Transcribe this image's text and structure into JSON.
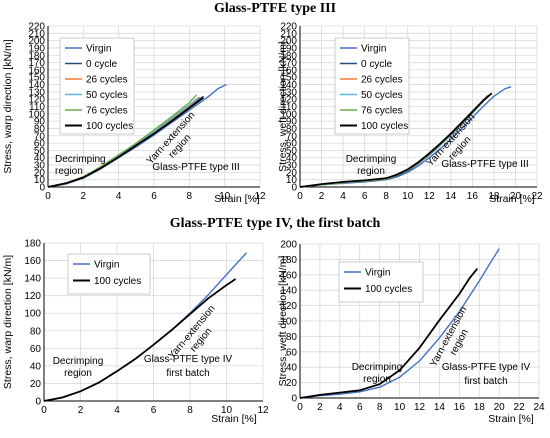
{
  "section_titles": {
    "top": "Glass-PTFE type III",
    "bottom": "Glass-PTFE type IV, the first batch"
  },
  "colors": {
    "Virgin": "#4472C4",
    "0 cycle": "#1F4E79",
    "26 cycles": "#ED7D31",
    "50 cycles": "#5BB5E0",
    "76 cycles": "#70AD47",
    "100 cycles": "#000000"
  },
  "chart_data": [
    {
      "type": "line",
      "xlabel": "Strain [%]",
      "ylabel": "Stress, warp direction [kN/m]",
      "xlim": [
        0,
        12
      ],
      "ylim": [
        0,
        220
      ],
      "xticks": [
        0,
        2,
        4,
        6,
        8,
        10,
        12
      ],
      "yticks": [
        0,
        10,
        20,
        30,
        40,
        50,
        60,
        70,
        80,
        90,
        100,
        110,
        120,
        130,
        140,
        150,
        160,
        170,
        180,
        190,
        200,
        210,
        220
      ],
      "grid": true,
      "legend_position": "top-left",
      "annotations": [
        "Decrimping region",
        "Yarn-extension region",
        "Glass-PTFE type III"
      ],
      "series": [
        {
          "name": "Virgin",
          "x": [
            0,
            1,
            2,
            3,
            4,
            5,
            6,
            7,
            8,
            9,
            9.6,
            10.1
          ],
          "y": [
            0,
            4,
            12,
            25,
            40,
            55,
            71,
            88,
            105,
            122,
            134,
            140
          ]
        },
        {
          "name": "0 cycle",
          "x": [
            0,
            1,
            2,
            3,
            4,
            5,
            6,
            7,
            8,
            8.5,
            8.8
          ],
          "y": [
            0,
            5,
            13,
            26,
            41,
            57,
            74,
            92,
            110,
            119,
            124
          ]
        },
        {
          "name": "26 cycles",
          "x": [
            0,
            1,
            2,
            3,
            4,
            5,
            6,
            7,
            8,
            8.6
          ],
          "y": [
            0,
            5,
            13,
            26,
            42,
            58,
            75,
            93,
            111,
            123
          ]
        },
        {
          "name": "50 cycles",
          "x": [
            0,
            1,
            2,
            3,
            4,
            5,
            6,
            7,
            8,
            8.5
          ],
          "y": [
            0,
            5,
            14,
            27,
            43,
            59,
            76,
            94,
            112,
            122
          ]
        },
        {
          "name": "76 cycles",
          "x": [
            0,
            1,
            2,
            3,
            4,
            5,
            6,
            7,
            8,
            8.4
          ],
          "y": [
            0,
            5,
            14,
            28,
            44,
            60,
            78,
            96,
            115,
            126
          ]
        },
        {
          "name": "100 cycles",
          "x": [
            0,
            1,
            2,
            3,
            4,
            5,
            6,
            7,
            8,
            8.8
          ],
          "y": [
            0,
            5,
            13,
            26,
            41,
            57,
            73,
            90,
            108,
            122
          ]
        }
      ]
    },
    {
      "type": "line",
      "xlabel": "Strain [%]",
      "ylabel": "Stress, weft direction [kN/m]",
      "xlim": [
        0,
        22
      ],
      "ylim": [
        0,
        220
      ],
      "xticks": [
        0,
        2,
        4,
        6,
        8,
        10,
        12,
        14,
        16,
        18,
        20,
        22
      ],
      "yticks": [
        0,
        10,
        20,
        30,
        40,
        50,
        60,
        70,
        80,
        90,
        100,
        110,
        120,
        130,
        140,
        150,
        160,
        170,
        180,
        190,
        200,
        210,
        220
      ],
      "grid": true,
      "legend_position": "top-left",
      "annotations": [
        "Decrimping region",
        "Yarn-extension region",
        "Glass-PTFE type III"
      ],
      "series": [
        {
          "name": "Virgin",
          "x": [
            0,
            2,
            4,
            6,
            8,
            9,
            10,
            11,
            12,
            13,
            14,
            15,
            16,
            17,
            18,
            19,
            19.6
          ],
          "y": [
            0,
            3,
            5,
            7,
            10,
            14,
            20,
            29,
            40,
            52,
            65,
            80,
            95,
            110,
            124,
            134,
            137
          ]
        },
        {
          "name": "0 cycle",
          "x": [
            0,
            2,
            4,
            6,
            8,
            9,
            10,
            11,
            12,
            13,
            14,
            15,
            16,
            17,
            17.6
          ],
          "y": [
            0,
            3,
            6,
            8,
            11,
            15,
            22,
            32,
            44,
            57,
            71,
            86,
            101,
            117,
            126
          ]
        },
        {
          "name": "26 cycles",
          "x": [
            0,
            2,
            4,
            6,
            8,
            9,
            10,
            11,
            12,
            13,
            14,
            15,
            16,
            17,
            17.4
          ],
          "y": [
            0,
            3,
            6,
            8,
            11,
            16,
            23,
            33,
            45,
            58,
            72,
            87,
            102,
            118,
            125
          ]
        },
        {
          "name": "50 cycles",
          "x": [
            0,
            2,
            4,
            6,
            8,
            9,
            10,
            11,
            12,
            13,
            14,
            15,
            16,
            17,
            17.3
          ],
          "y": [
            0,
            3,
            6,
            8,
            12,
            16,
            23,
            33,
            45,
            58,
            72,
            87,
            102,
            117,
            123
          ]
        },
        {
          "name": "76 cycles",
          "x": [
            0,
            2,
            4,
            6,
            8,
            9,
            10,
            11,
            12,
            13,
            14,
            15,
            16,
            17,
            17.5
          ],
          "y": [
            0,
            3,
            6,
            8,
            11,
            16,
            23,
            33,
            45,
            58,
            72,
            87,
            102,
            117,
            125
          ]
        },
        {
          "name": "100 cycles",
          "x": [
            0,
            2,
            4,
            6,
            8,
            9,
            10,
            11,
            12,
            13,
            14,
            15,
            16,
            17,
            17.8
          ],
          "y": [
            0,
            4,
            7,
            9,
            12,
            17,
            24,
            34,
            46,
            59,
            73,
            88,
            103,
            118,
            128
          ]
        }
      ]
    },
    {
      "type": "line",
      "xlabel": "Strain [%]",
      "ylabel": "Stress, warp direction [kN/m]",
      "xlim": [
        0,
        12
      ],
      "ylim": [
        0,
        180
      ],
      "xticks": [
        0,
        2,
        4,
        6,
        8,
        10,
        12
      ],
      "yticks": [
        0,
        20,
        40,
        60,
        80,
        100,
        120,
        140,
        160,
        180
      ],
      "grid": true,
      "legend_position": "top-left",
      "annotations": [
        "Decrimping region",
        "Yarn-extension region",
        "Glass-PTFE type IV",
        "first batch"
      ],
      "series": [
        {
          "name": "Virgin",
          "x": [
            0,
            1,
            2,
            3,
            4,
            5,
            6,
            7,
            8,
            9,
            10,
            11.1
          ],
          "y": [
            0,
            4,
            11,
            21,
            34,
            48,
            64,
            81,
            100,
            121,
            144,
            169
          ]
        },
        {
          "name": "100 cycles",
          "x": [
            0,
            1,
            2,
            3,
            4,
            5,
            6,
            7,
            8,
            9,
            10,
            10.5
          ],
          "y": [
            0,
            4,
            11,
            21,
            34,
            48,
            64,
            81,
            99,
            117,
            132,
            139
          ]
        }
      ]
    },
    {
      "type": "line",
      "xlabel": "Strain [%]",
      "ylabel": "Stress, weft direction [kN/m]",
      "xlim": [
        0,
        24
      ],
      "ylim": [
        0,
        200
      ],
      "xticks": [
        0,
        2,
        4,
        6,
        8,
        10,
        12,
        14,
        16,
        18,
        20,
        22,
        24
      ],
      "yticks": [
        0,
        20,
        40,
        60,
        80,
        100,
        120,
        140,
        160,
        180,
        200
      ],
      "grid": true,
      "legend_position": "top-left",
      "annotations": [
        "Decrimping region",
        "Yarn-extension region",
        "Glass-PTFE type IV",
        "first batch"
      ],
      "series": [
        {
          "name": "Virgin",
          "x": [
            0,
            2,
            4,
            6,
            8,
            10,
            12,
            14,
            16,
            18,
            19,
            20
          ],
          "y": [
            0,
            3,
            5,
            8,
            14,
            27,
            48,
            78,
            112,
            152,
            173,
            194
          ]
        },
        {
          "name": "100 cycles",
          "x": [
            0,
            2,
            4,
            6,
            8,
            10,
            12,
            14,
            16,
            17,
            17.8
          ],
          "y": [
            0,
            4,
            7,
            10,
            18,
            36,
            65,
            101,
            135,
            155,
            168
          ]
        }
      ]
    }
  ]
}
